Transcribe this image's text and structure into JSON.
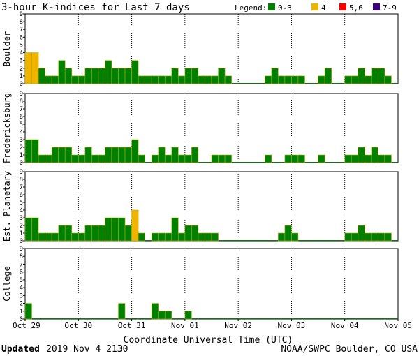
{
  "title": "3-hour K-indices for Last 7 days",
  "legend": {
    "label": "Legend:",
    "items": [
      {
        "label": "0-3",
        "color": "#008000"
      },
      {
        "label": "4",
        "color": "#f0b400"
      },
      {
        "label": "5,6",
        "color": "#ff0000"
      },
      {
        "label": "7-9",
        "color": "#3c0080"
      }
    ]
  },
  "xlabel": "Coordinate Universal Time (UTC)",
  "footer": {
    "updated_label": "Updated",
    "updated_value": "2019 Nov  4 2130",
    "source": "NOAA/SWPC Boulder, CO USA"
  },
  "chart_data": {
    "type": "bar",
    "x_ticks": [
      "Oct 29",
      "Oct 30",
      "Oct 31",
      "Nov 01",
      "Nov 02",
      "Nov 03",
      "Nov 04",
      "Nov 05"
    ],
    "ylim": [
      0,
      9
    ],
    "y_ticks": [
      0,
      1,
      2,
      3,
      4,
      5,
      6,
      7,
      8,
      9
    ],
    "series": [
      {
        "name": "Boulder",
        "values": [
          4,
          4,
          2,
          1,
          1,
          3,
          2,
          1,
          1,
          2,
          2,
          2,
          3,
          2,
          2,
          2,
          3,
          1,
          1,
          1,
          1,
          1,
          2,
          1,
          2,
          2,
          1,
          1,
          1,
          2,
          1,
          0,
          0,
          0,
          0,
          0,
          1,
          2,
          1,
          1,
          1,
          1,
          0,
          0,
          1,
          2,
          0,
          0,
          1,
          1,
          2,
          1,
          2,
          2,
          1,
          0
        ]
      },
      {
        "name": "Fredericksburg",
        "values": [
          3,
          3,
          1,
          1,
          2,
          2,
          2,
          1,
          1,
          2,
          1,
          1,
          2,
          2,
          2,
          2,
          3,
          1,
          0,
          1,
          2,
          1,
          2,
          1,
          1,
          2,
          0,
          0,
          1,
          1,
          1,
          0,
          0,
          0,
          0,
          0,
          1,
          0,
          0,
          1,
          1,
          1,
          0,
          0,
          1,
          0,
          0,
          0,
          1,
          1,
          2,
          1,
          2,
          1,
          1,
          0
        ]
      },
      {
        "name": "Est. Planetary",
        "values": [
          3,
          3,
          1,
          1,
          1,
          2,
          2,
          1,
          1,
          2,
          2,
          2,
          3,
          3,
          3,
          2,
          4,
          1,
          0,
          1,
          1,
          1,
          3,
          1,
          2,
          2,
          1,
          1,
          1,
          0,
          0,
          0,
          0,
          0,
          0,
          0,
          0,
          0,
          1,
          2,
          1,
          0,
          0,
          0,
          0,
          0,
          0,
          0,
          1,
          1,
          2,
          1,
          1,
          1,
          1,
          0
        ]
      },
      {
        "name": "College",
        "values": [
          2,
          0,
          0,
          0,
          0,
          0,
          0,
          0,
          0,
          0,
          0,
          0,
          0,
          0,
          2,
          0,
          0,
          0,
          0,
          2,
          1,
          1,
          0,
          0,
          1,
          0,
          0,
          0,
          0,
          0,
          0,
          0,
          0,
          0,
          0,
          0,
          0,
          0,
          0,
          0,
          0,
          0,
          0,
          0,
          0,
          0,
          0,
          0,
          0,
          0,
          0,
          0,
          0,
          0,
          0,
          0
        ]
      }
    ]
  }
}
